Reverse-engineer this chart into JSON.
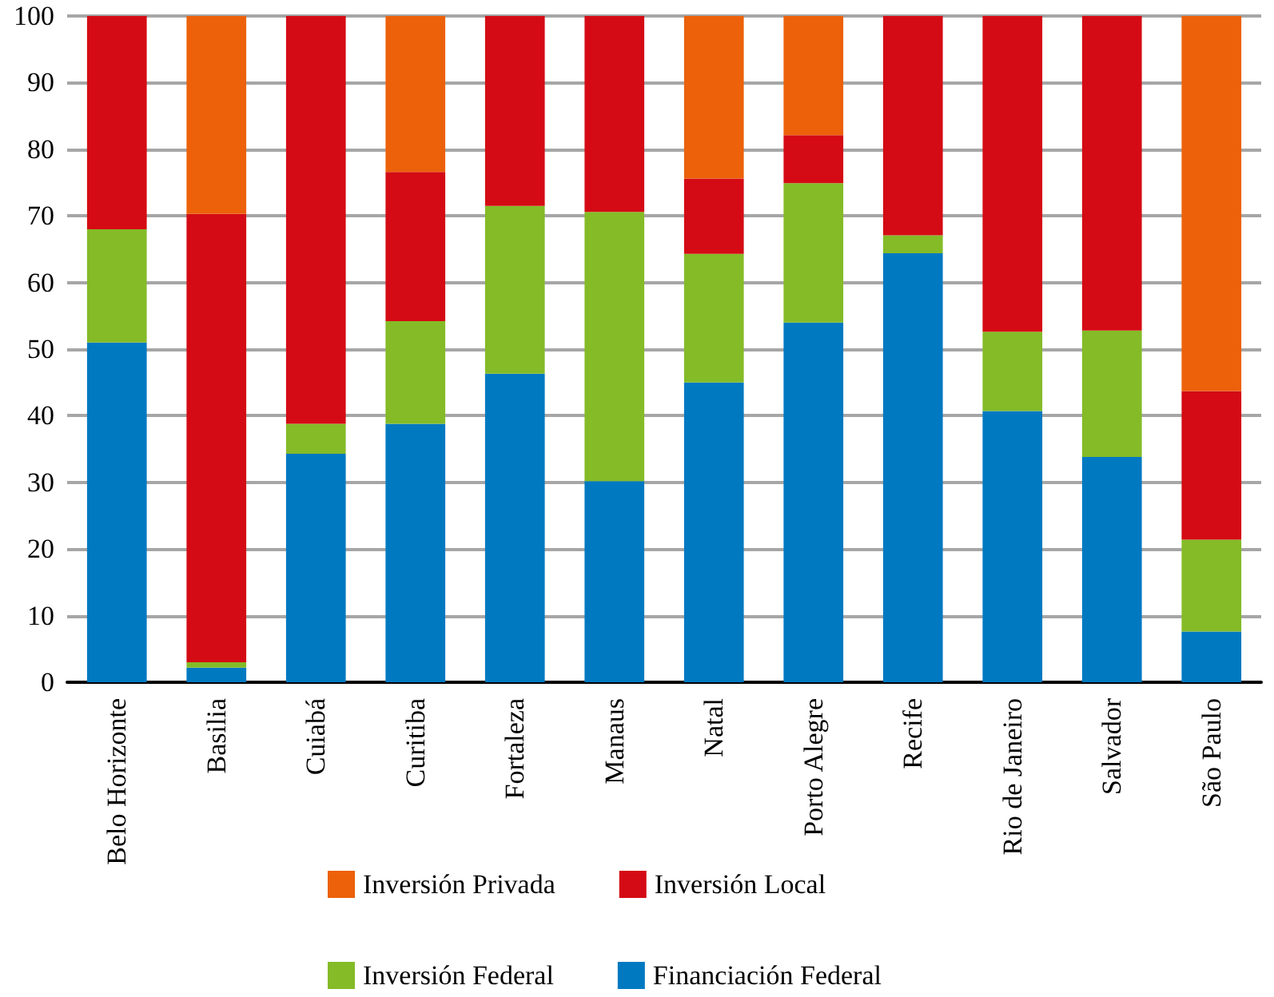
{
  "chart_data": {
    "type": "bar",
    "stacked": true,
    "categories": [
      "Belo Horizonte",
      "Basilia",
      "Cuiabá",
      "Curitiba",
      "Fortaleza",
      "Manaus",
      "Natal",
      "Porto Alegre",
      "Recife",
      "Rio de Janeiro",
      "Salvador",
      "São Paulo"
    ],
    "series": [
      {
        "name": "Financiación Federal",
        "color": "#0079c1",
        "values": [
          51,
          2.2,
          34.3,
          38.8,
          46.3,
          30.2,
          45,
          54,
          64.4,
          40.7,
          33.8,
          7.6
        ]
      },
      {
        "name": "Inversión Federal",
        "color": "#84bb27",
        "values": [
          17,
          0.8,
          4.5,
          15.4,
          25.2,
          40.4,
          19.3,
          20.9,
          2.7,
          11.9,
          19,
          13.8
        ]
      },
      {
        "name": "Inversión Local",
        "color": "#d40b14",
        "values": [
          32,
          67.3,
          61.2,
          22.4,
          28.5,
          29.4,
          11.3,
          7.2,
          32.9,
          47.4,
          47.2,
          22.3
        ]
      },
      {
        "name": "Inversión Privada",
        "color": "#ec610a",
        "values": [
          null,
          29.7,
          null,
          23.4,
          null,
          null,
          24.4,
          17.9,
          null,
          null,
          null,
          56.3
        ]
      }
    ],
    "ylim": [
      0,
      100
    ],
    "yticks": [
      0,
      10,
      20,
      30,
      40,
      50,
      60,
      70,
      80,
      90,
      100
    ],
    "grid": "y",
    "legend": "bottom"
  }
}
